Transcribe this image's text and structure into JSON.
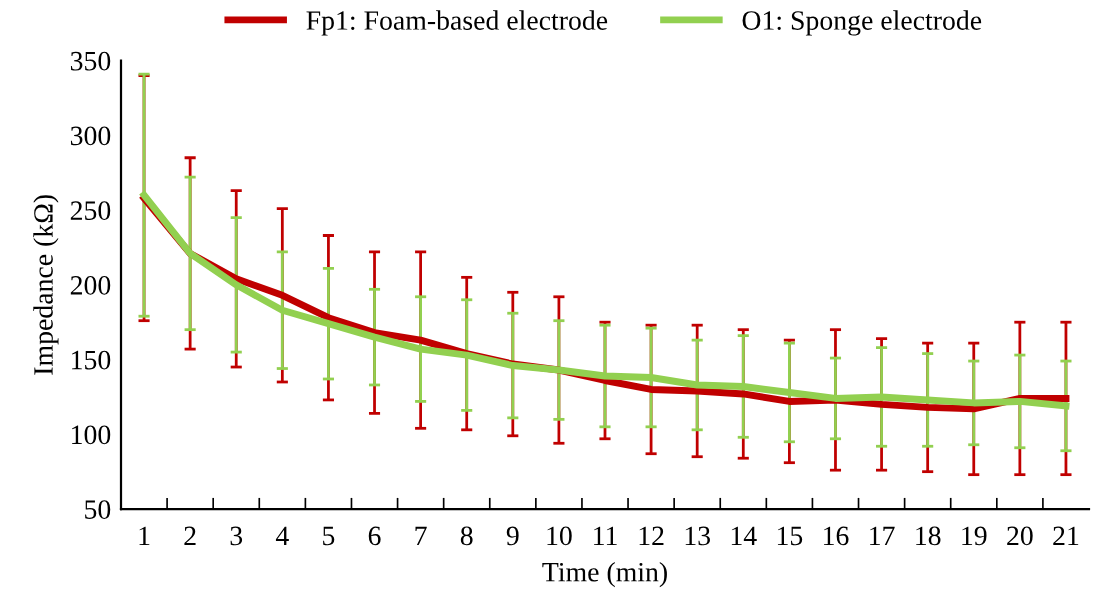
{
  "chart_data": {
    "type": "line",
    "xlabel": "Time (min)",
    "ylabel": "Impedance (kΩ)",
    "categories": [
      "1",
      "2",
      "3",
      "4",
      "5",
      "6",
      "7",
      "8",
      "9",
      "10",
      "11",
      "12",
      "13",
      "14",
      "15",
      "16",
      "17",
      "18",
      "19",
      "20",
      "21"
    ],
    "series": [
      {
        "name": "Fp1: Foam-based electrode",
        "color": "#c00000",
        "values": [
          258,
          221,
          204,
          193,
          178,
          168,
          163,
          154,
          147,
          143,
          136,
          130,
          129,
          127,
          122,
          123,
          120,
          118,
          117,
          124,
          124
        ],
        "errors": [
          82,
          64,
          59,
          58,
          55,
          54,
          59,
          51,
          48,
          49,
          39,
          43,
          44,
          43,
          41,
          47,
          44,
          43,
          44,
          51,
          51
        ]
      },
      {
        "name": "O1: Sponge electrode",
        "color": "#92d050",
        "values": [
          260,
          221,
          200,
          183,
          174,
          165,
          157,
          153,
          146,
          143,
          139,
          138,
          133,
          132,
          128,
          124,
          125,
          123,
          121,
          122,
          119
        ],
        "errors": [
          81,
          51,
          45,
          39,
          37,
          32,
          35,
          37,
          35,
          33,
          34,
          33,
          30,
          34,
          33,
          27,
          33,
          31,
          28,
          31,
          30
        ]
      }
    ],
    "ylim": [
      50,
      350
    ],
    "yticks": [
      50,
      100,
      150,
      200,
      250,
      300,
      350
    ],
    "grid": false,
    "legend": "top",
    "marker": "none",
    "line_style": "solid"
  }
}
